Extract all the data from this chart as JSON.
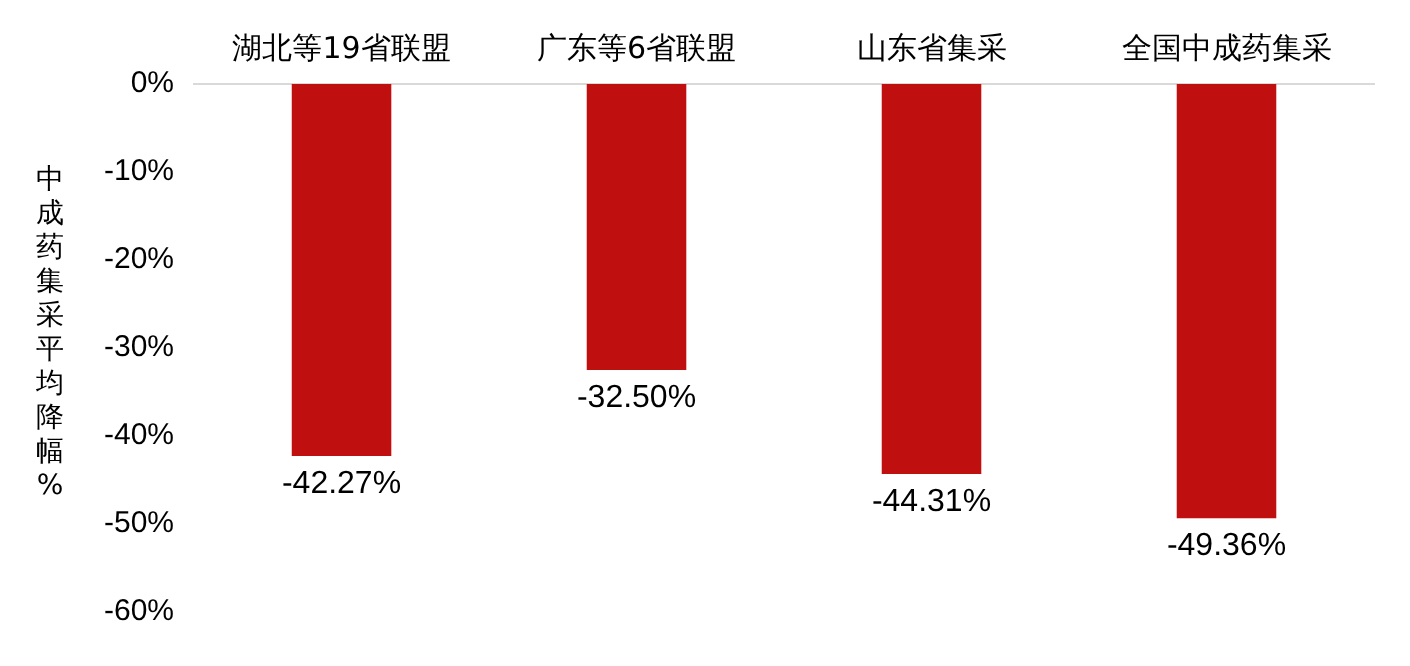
{
  "chart_data": {
    "type": "bar",
    "ylabel": "中成药集采平均降幅%",
    "categories": [
      "湖北等19省联盟",
      "广东等6省联盟",
      "山东省集采",
      "全国中成药集采"
    ],
    "values": [
      -42.27,
      -32.5,
      -44.31,
      -49.36
    ],
    "value_labels": [
      "-42.27%",
      "-32.50%",
      "-44.31%",
      "-49.36%"
    ],
    "color": "#c00f0f",
    "ylim": [
      -60,
      0
    ],
    "yticks": [
      {
        "value": 0,
        "label": "0%"
      },
      {
        "value": -10,
        "label": "-10%"
      },
      {
        "value": -20,
        "label": "-20%"
      },
      {
        "value": -30,
        "label": "-30%"
      },
      {
        "value": -40,
        "label": "-40%"
      },
      {
        "value": -50,
        "label": "-50%"
      },
      {
        "value": -60,
        "label": "-60%"
      }
    ],
    "grid": false
  }
}
